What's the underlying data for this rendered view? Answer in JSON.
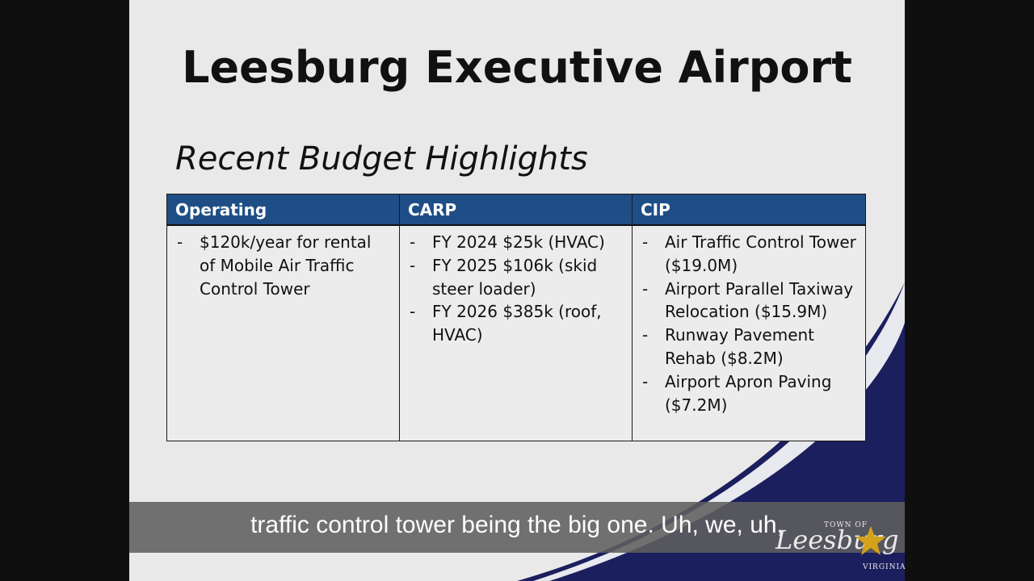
{
  "slide": {
    "title": "Leesburg Executive Airport",
    "subtitle": "Recent Budget Highlights"
  },
  "table": {
    "headers": [
      "Operating",
      "CARP",
      "CIP"
    ],
    "operating": [
      "$120k/year for rental of Mobile Air Traffic Control Tower"
    ],
    "carp": [
      "FY 2024 $25k (HVAC)",
      "FY 2025 $106k (skid steer loader)",
      "FY 2026 $385k (roof, HVAC)"
    ],
    "cip": [
      "Air Traffic Control Tower ($19.0M)",
      "Airport Parallel Taxiway Relocation ($15.9M)",
      "Runway Pavement Rehab ($8.2M)",
      "Airport Apron Paving ($7.2M)"
    ]
  },
  "caption": {
    "text": "traffic control tower being the big one. Uh, we, uh,"
  },
  "logo": {
    "top_text": "TOWN OF",
    "name": "Leesburg",
    "bottom_text": "VIRGINIA"
  },
  "colors": {
    "header_blue": "#1f4e86",
    "swoosh_navy": "#1c1f5e",
    "star_gold": "#d4a21a"
  }
}
